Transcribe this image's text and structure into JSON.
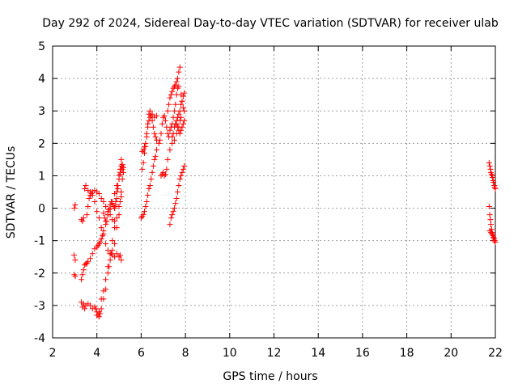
{
  "chart_data": {
    "type": "scatter",
    "title": "Day 292 of 2024, Sidereal Day-to-day VTEC variation (SDTVAR) for receiver ulab",
    "xlabel": "GPS time / hours",
    "ylabel": "SDTVAR / TECUs",
    "xlim": [
      2,
      22
    ],
    "ylim": [
      -4,
      5
    ],
    "xticks": [
      2,
      4,
      6,
      8,
      10,
      12,
      14,
      16,
      18,
      20,
      22
    ],
    "yticks": [
      -4,
      -3,
      -2,
      -1,
      0,
      1,
      2,
      3,
      4,
      5
    ],
    "grid": true,
    "marker": "plus",
    "colors": {
      "series": "#ff0000",
      "grid": "#a0a0a0",
      "axis": "#000000"
    },
    "series": [
      {
        "name": "SDTVAR",
        "segments": [
          {
            "x": [
              2.97,
              3.02
            ],
            "y": [
              -1.45,
              -1.6
            ]
          },
          {
            "x": [
              2.98,
              3.03
            ],
            "y": [
              -2.05,
              -2.1
            ]
          },
          {
            "x": [
              2.98,
              3.02
            ],
            "y": [
              0.0,
              0.1
            ]
          },
          {
            "x": [
              3.3,
              3.35,
              3.4,
              3.45,
              3.5,
              3.55,
              3.6,
              3.7,
              3.8,
              3.9,
              4.0,
              4.05,
              4.1,
              4.15,
              4.2,
              4.25,
              4.3,
              4.4,
              4.5,
              4.6,
              4.7,
              4.8,
              4.9,
              5.0,
              5.05,
              5.1,
              5.15
            ],
            "y": [
              -2.2,
              -2.05,
              -1.9,
              -1.75,
              -1.72,
              -1.7,
              -1.65,
              -1.55,
              -1.4,
              -1.25,
              -1.2,
              -1.15,
              -1.1,
              -1.05,
              -0.95,
              -0.85,
              -0.7,
              -0.4,
              -0.2,
              0.0,
              0.2,
              0.45,
              0.7,
              0.9,
              1.05,
              1.2,
              1.3
            ]
          },
          {
            "x": [
              3.3,
              3.35,
              3.4,
              3.45,
              3.5,
              3.6,
              3.7,
              3.8,
              3.9,
              4.0,
              4.1,
              4.2,
              4.3,
              4.4,
              4.5,
              4.6,
              4.7,
              4.8,
              4.9,
              5.0,
              5.1
            ],
            "y": [
              -2.9,
              -3.05,
              -2.95,
              -3.1,
              -3.0,
              -2.95,
              -3.0,
              -3.1,
              -3.05,
              -3.3,
              -3.2,
              -2.8,
              -2.55,
              -2.2,
              -1.8,
              -1.4,
              -1.0,
              -0.6,
              -0.3,
              0.05,
              0.35
            ]
          },
          {
            "x": [
              3.95,
              4.0,
              4.05,
              4.1,
              4.15,
              4.2,
              4.3,
              4.4,
              4.5,
              4.55,
              4.6,
              4.65,
              4.7,
              4.8,
              4.9,
              5.0,
              5.05,
              5.1,
              5.15
            ],
            "y": [
              -3.1,
              -3.2,
              -3.3,
              -3.35,
              -3.25,
              -3.1,
              -2.8,
              -2.5,
              -2.0,
              -1.8,
              -1.6,
              -1.4,
              -1.3,
              -1.1,
              -0.6,
              -0.2,
              0.2,
              0.5,
              0.9
            ]
          },
          {
            "x": [
              3.3,
              3.35,
              3.4,
              3.45,
              3.5,
              3.6,
              3.7,
              3.75,
              3.8,
              3.9,
              4.0,
              4.1,
              4.2,
              4.3,
              4.4,
              4.5,
              4.6,
              4.7,
              4.8
            ],
            "y": [
              -0.35,
              -0.4,
              -0.3,
              0.6,
              0.7,
              0.55,
              0.4,
              0.45,
              0.5,
              0.55,
              0.5,
              0.45,
              0.3,
              0.2,
              0.05,
              -0.1,
              -0.2,
              -0.35,
              -0.4
            ]
          },
          {
            "x": [
              3.55,
              3.6,
              3.65,
              3.7,
              3.8,
              3.9,
              4.0,
              4.1,
              4.2,
              4.3,
              4.4,
              4.5,
              4.6,
              4.7,
              4.8,
              4.9,
              5.0,
              5.05,
              5.1
            ],
            "y": [
              -0.2,
              0.05,
              0.3,
              0.5,
              0.4,
              0.2,
              -0.1,
              -0.3,
              -0.6,
              -0.8,
              -1.1,
              -1.3,
              -1.4,
              -1.45,
              -1.5,
              -1.4,
              -1.5,
              -1.45,
              -1.6
            ]
          },
          {
            "x": [
              4.3,
              4.35,
              4.4,
              4.45,
              4.5,
              4.55,
              4.6,
              4.65,
              4.7,
              4.75,
              4.8,
              4.85,
              4.9,
              4.95,
              5.0,
              5.05,
              5.1,
              5.15,
              5.2
            ],
            "y": [
              -0.15,
              -0.3,
              -0.5,
              -0.4,
              -0.2,
              -0.05,
              0.1,
              0.2,
              0.15,
              0.05,
              0.0,
              0.1,
              0.3,
              0.6,
              0.9,
              1.1,
              1.3,
              1.2,
              1.1
            ]
          },
          {
            "x": [
              4.8,
              4.85,
              4.9,
              4.95,
              5.0,
              5.05,
              5.1,
              5.15,
              5.2
            ],
            "y": [
              0.0,
              0.2,
              0.5,
              0.7,
              1.0,
              1.2,
              1.5,
              1.35,
              1.25
            ]
          },
          {
            "x": [
              6.05,
              6.1,
              6.15,
              6.2,
              6.25,
              6.3,
              6.35,
              6.4,
              6.45,
              6.5,
              6.55,
              6.6,
              6.65,
              6.7
            ],
            "y": [
              1.2,
              1.4,
              1.7,
              1.9,
              2.2,
              2.5,
              2.7,
              2.8,
              2.85,
              2.7,
              2.5,
              2.3,
              2.2,
              2.1
            ]
          },
          {
            "x": [
              6.05,
              6.1,
              6.15,
              6.2,
              6.25,
              6.3,
              6.35,
              6.4,
              6.5,
              6.6,
              6.7
            ],
            "y": [
              1.75,
              1.8,
              1.9,
              2.0,
              2.3,
              2.6,
              2.9,
              3.0,
              2.9,
              2.8,
              2.85
            ]
          },
          {
            "x": [
              6.0,
              6.05,
              6.1,
              6.15,
              6.2,
              6.25,
              6.3,
              6.35,
              6.4,
              6.45,
              6.5,
              6.55,
              6.6,
              6.65,
              6.7
            ],
            "y": [
              -0.3,
              -0.25,
              -0.2,
              -0.1,
              0.05,
              0.2,
              0.4,
              0.6,
              0.7,
              0.9,
              1.1,
              1.3,
              1.5,
              1.6,
              1.8
            ]
          },
          {
            "x": [
              6.8,
              6.85,
              6.9,
              6.95,
              7.0,
              7.05,
              7.1,
              7.15,
              7.2,
              7.25,
              7.3,
              7.35,
              7.4,
              7.45,
              7.5,
              7.55,
              7.6,
              7.65,
              7.7
            ],
            "y": [
              2.0,
              2.1,
              2.3,
              2.6,
              2.8,
              2.85,
              2.7,
              2.5,
              2.3,
              2.2,
              2.4,
              2.5,
              2.6,
              2.8,
              3.0,
              3.2,
              3.5,
              3.7,
              3.75
            ]
          },
          {
            "x": [
              6.9,
              6.95,
              7.0,
              7.05,
              7.1,
              7.15,
              7.2,
              7.3,
              7.4,
              7.5,
              7.6,
              7.7,
              7.75,
              7.8
            ],
            "y": [
              1.0,
              1.05,
              1.1,
              1.0,
              1.05,
              1.2,
              1.5,
              1.8,
              2.0,
              2.1,
              2.3,
              2.5,
              2.7,
              2.8
            ]
          },
          {
            "x": [
              7.2,
              7.25,
              7.3,
              7.35,
              7.4,
              7.45,
              7.5,
              7.55,
              7.6,
              7.65,
              7.7,
              7.75,
              7.8,
              7.85,
              7.9,
              7.95
            ],
            "y": [
              3.0,
              3.2,
              3.4,
              3.5,
              3.6,
              3.7,
              3.75,
              3.8,
              3.9,
              4.0,
              4.2,
              4.35,
              3.5,
              3.3,
              3.1,
              3.0
            ]
          },
          {
            "x": [
              7.3,
              7.35,
              7.4,
              7.45,
              7.5,
              7.55,
              7.6,
              7.65,
              7.7,
              7.75,
              7.8,
              7.85,
              7.9,
              7.95
            ],
            "y": [
              -0.5,
              -0.3,
              -0.2,
              -0.1,
              0.0,
              0.15,
              0.3,
              0.5,
              0.7,
              0.9,
              1.0,
              1.1,
              1.2,
              1.3
            ]
          },
          {
            "x": [
              7.4,
              7.45,
              7.5,
              7.55,
              7.6,
              7.65,
              7.7,
              7.75,
              7.8,
              7.85,
              7.9,
              7.95
            ],
            "y": [
              2.2,
              2.3,
              2.5,
              2.6,
              2.7,
              2.8,
              2.9,
              3.0,
              3.2,
              3.3,
              3.45,
              3.55
            ]
          },
          {
            "x": [
              7.6,
              7.65,
              7.7,
              7.75,
              7.8,
              7.85,
              7.9,
              7.95
            ],
            "y": [
              2.6,
              2.5,
              2.4,
              2.3,
              2.4,
              2.5,
              2.6,
              2.7
            ]
          },
          {
            "x": [
              21.72,
              21.75,
              21.78,
              21.8,
              21.83,
              21.85,
              21.88,
              21.9,
              21.92,
              21.95,
              21.97,
              22.0
            ],
            "y": [
              1.4,
              1.3,
              1.2,
              1.1,
              1.05,
              1.0,
              0.95,
              0.85,
              0.8,
              0.7,
              0.65,
              0.6
            ]
          },
          {
            "x": [
              21.72,
              21.75,
              21.78,
              21.8,
              21.83,
              21.85,
              21.88,
              21.9,
              21.92,
              21.95,
              21.97,
              22.0
            ],
            "y": [
              0.05,
              -0.2,
              -0.35,
              -0.5,
              -0.65,
              -0.75,
              -0.8,
              -0.85,
              -0.9,
              -0.95,
              -1.0,
              -1.05
            ]
          },
          {
            "x": [
              21.75,
              21.8,
              21.85,
              21.9,
              21.95
            ],
            "y": [
              -0.7,
              -0.75,
              -0.8,
              -0.9,
              -1.0
            ]
          }
        ]
      }
    ]
  }
}
